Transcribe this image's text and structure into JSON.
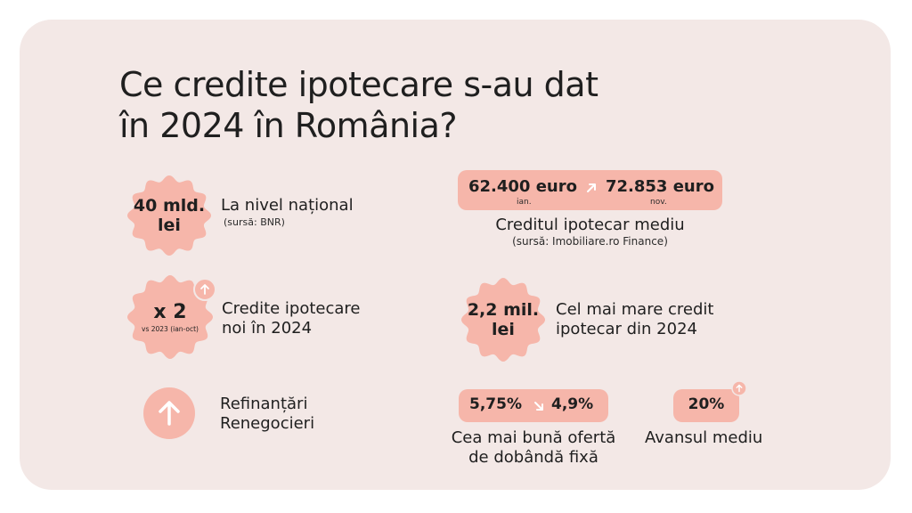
{
  "title": {
    "line1": "Ce credite ipotecare s-au dat",
    "line2": "în 2024 în România?"
  },
  "national": {
    "badge_line1": "40 mld.",
    "badge_line2": "lei",
    "label": "La nivel național",
    "source": "(sursă: BNR)"
  },
  "average_credit": {
    "from_value": "62.400 euro",
    "from_month": "ian.",
    "to_value": "72.853 euro",
    "to_month": "nov.",
    "label": "Creditul ipotecar mediu",
    "source": "(sursă: Imobiliare.ro Finance)"
  },
  "new_credits": {
    "badge_main": "x 2",
    "badge_sub": "vs 2023 (ian-oct)",
    "label_line1": "Credite ipotecare",
    "label_line2": "noi în 2024"
  },
  "largest_credit": {
    "badge_line1": "2,2 mil.",
    "badge_line2": "lei",
    "label_line1": "Cel mai mare credit",
    "label_line2": "ipotecar din 2024"
  },
  "refinancing": {
    "label_line1": "Refinanțări",
    "label_line2": "Renegocieri"
  },
  "best_rate": {
    "from_value": "5,75%",
    "to_value": "4,9%",
    "label_line1": "Cea mai bună ofertă",
    "label_line2": "de dobândă fixă"
  },
  "down_payment": {
    "value": "20%",
    "label": "Avansul mediu"
  },
  "colors": {
    "background": "#f3e8e6",
    "accent": "#f6b6aa"
  },
  "icons": [
    "arrow-up-right-icon",
    "arrow-down-right-icon",
    "arrow-up-icon"
  ]
}
